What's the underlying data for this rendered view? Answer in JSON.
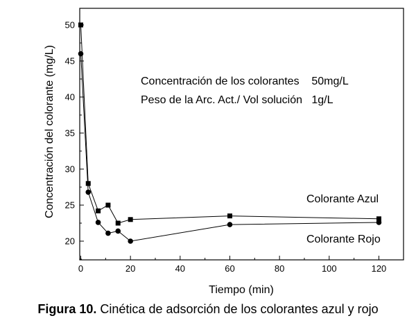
{
  "chart_data": {
    "type": "line",
    "xlabel": "Tiempo (min)",
    "ylabel": "Concentración del colorante (mg/L)",
    "xlim": [
      0,
      130
    ],
    "ylim": [
      16,
      52
    ],
    "xticks": [
      0,
      20,
      40,
      60,
      80,
      100,
      120
    ],
    "yticks": [
      20,
      25,
      30,
      35,
      40,
      45,
      50
    ],
    "grid": false,
    "series": [
      {
        "name": "Colorante Azul",
        "marker": "square",
        "color": "#000000",
        "x": [
          0,
          3,
          7,
          11,
          15,
          20,
          60,
          120
        ],
        "y": [
          50,
          28,
          24.2,
          25,
          22.5,
          23,
          23.5,
          23.1
        ]
      },
      {
        "name": "Colorante Rojo",
        "marker": "circle",
        "color": "#000000",
        "x": [
          0,
          3,
          7,
          11,
          15,
          20,
          60,
          120
        ],
        "y": [
          46,
          26.8,
          22.6,
          21.1,
          21.4,
          20,
          22.3,
          22.6
        ]
      }
    ],
    "annotations": [
      "Concentración de los colorantes    50mg/L",
      "Peso de la Arc. Act./ Vol solución   1g/L"
    ]
  },
  "caption": {
    "label": "Figura 10.",
    "text": "Cinética de adsorción de los colorantes azul y rojo"
  }
}
